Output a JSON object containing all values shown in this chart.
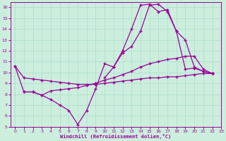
{
  "xlabel": "Windchill (Refroidissement éolien,°C)",
  "bg_color": "#cceedd",
  "line_color": "#990099",
  "grid_color": "#aaddcc",
  "xlim": [
    -0.5,
    23
  ],
  "ylim": [
    5,
    16.5
  ],
  "xticks": [
    0,
    1,
    2,
    3,
    4,
    5,
    6,
    7,
    8,
    9,
    10,
    11,
    12,
    13,
    14,
    15,
    16,
    17,
    18,
    19,
    20,
    21,
    22,
    23
  ],
  "yticks": [
    5,
    6,
    7,
    8,
    9,
    10,
    11,
    12,
    13,
    14,
    15,
    16
  ],
  "series": [
    {
      "x": [
        0,
        1,
        2,
        3,
        4,
        5,
        6,
        7,
        8,
        9,
        10,
        11,
        12,
        13,
        14,
        15,
        16,
        17,
        18,
        19,
        20,
        21,
        22
      ],
      "y": [
        10.6,
        8.2,
        8.2,
        7.9,
        7.5,
        7.0,
        6.5,
        5.2,
        6.5,
        8.5,
        10.8,
        10.5,
        12.0,
        14.0,
        16.2,
        16.3,
        15.6,
        15.8,
        13.8,
        10.3,
        10.4,
        10.1,
        9.9
      ]
    },
    {
      "x": [
        0,
        1,
        2,
        3,
        4,
        5,
        6,
        7,
        8,
        9,
        10,
        11,
        12,
        13,
        14,
        15,
        16,
        17,
        18,
        19,
        20,
        21,
        22
      ],
      "y": [
        10.6,
        9.5,
        9.4,
        9.3,
        9.2,
        9.1,
        9.0,
        8.9,
        8.9,
        8.9,
        9.0,
        9.1,
        9.2,
        9.3,
        9.4,
        9.5,
        9.5,
        9.6,
        9.6,
        9.7,
        9.8,
        9.9,
        9.9
      ]
    },
    {
      "x": [
        1,
        2,
        3,
        4,
        5,
        6,
        7,
        8,
        9,
        10,
        11,
        12,
        13,
        14,
        15,
        16,
        17,
        18,
        19,
        20,
        21,
        22
      ],
      "y": [
        8.2,
        8.2,
        7.9,
        8.3,
        8.4,
        8.5,
        8.6,
        8.8,
        9.0,
        9.3,
        9.5,
        9.8,
        10.1,
        10.5,
        10.8,
        11.0,
        11.2,
        11.3,
        11.5,
        11.5,
        10.3,
        9.9
      ]
    },
    {
      "x": [
        10,
        11,
        12,
        13,
        14,
        15,
        16,
        17,
        18,
        19,
        20,
        21,
        22
      ],
      "y": [
        9.5,
        10.5,
        11.8,
        12.4,
        13.8,
        16.2,
        16.3,
        15.6,
        13.8,
        13.0,
        10.5,
        10.1,
        9.9
      ]
    }
  ]
}
